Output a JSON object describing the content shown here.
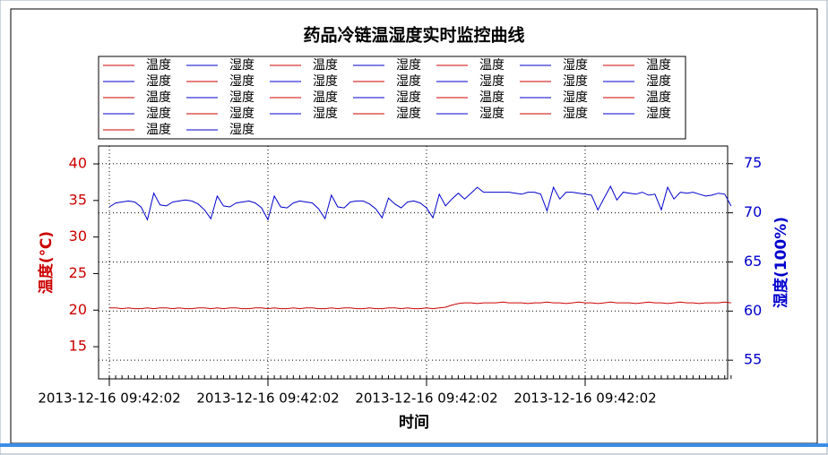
{
  "chart_data": {
    "type": "line",
    "title": "药品冷链温湿度实时监控曲线",
    "x_label": "时间",
    "y_label": "温度(℃)",
    "y2_label": "湿度(100%)",
    "legend": [
      {
        "name": "温度",
        "color": "#cc0000"
      },
      {
        "name": "湿度",
        "color": "#0000cc"
      },
      {
        "name": "温度",
        "color": "#cc0000"
      },
      {
        "name": "湿度",
        "color": "#0000cc"
      },
      {
        "name": "温度",
        "color": "#cc0000"
      },
      {
        "name": "湿度",
        "color": "#0000cc"
      },
      {
        "name": "温度",
        "color": "#cc0000"
      },
      {
        "name": "湿度",
        "color": "#0000cc"
      },
      {
        "name": "湿度",
        "color": "#cc0000"
      },
      {
        "name": "湿度",
        "color": "#0000cc"
      },
      {
        "name": "湿度",
        "color": "#cc0000"
      },
      {
        "name": "湿度",
        "color": "#0000cc"
      },
      {
        "name": "湿度",
        "color": "#cc0000"
      },
      {
        "name": "湿度",
        "color": "#0000cc"
      },
      {
        "name": "温度",
        "color": "#cc0000"
      },
      {
        "name": "湿度",
        "color": "#0000cc"
      },
      {
        "name": "温度",
        "color": "#cc0000"
      },
      {
        "name": "湿度",
        "color": "#0000cc"
      },
      {
        "name": "温度",
        "color": "#cc0000"
      },
      {
        "name": "湿度",
        "color": "#0000cc"
      },
      {
        "name": "温度",
        "color": "#cc0000"
      },
      {
        "name": "湿度",
        "color": "#0000cc"
      },
      {
        "name": "湿度",
        "color": "#cc0000"
      },
      {
        "name": "湿度",
        "color": "#0000cc"
      },
      {
        "name": "湿度",
        "color": "#cc0000"
      },
      {
        "name": "湿度",
        "color": "#0000cc"
      },
      {
        "name": "湿度",
        "color": "#cc0000"
      },
      {
        "name": "湿度",
        "color": "#0000cc"
      },
      {
        "name": "温度",
        "color": "#cc0000"
      },
      {
        "name": "湿度",
        "color": "#0000cc"
      }
    ],
    "categories": [
      "2013-12-16 09:42:02",
      null,
      null,
      null,
      null,
      null,
      null,
      null,
      null,
      null,
      null,
      null,
      null,
      null,
      null,
      null,
      null,
      null,
      null,
      null,
      null,
      null,
      null,
      null,
      null,
      "2013-12-16 09:42:02",
      null,
      null,
      null,
      null,
      null,
      null,
      null,
      null,
      null,
      null,
      null,
      null,
      null,
      null,
      null,
      null,
      null,
      null,
      null,
      null,
      null,
      null,
      null,
      null,
      "2013-12-16 09:42:02",
      null,
      null,
      null,
      null,
      null,
      null,
      null,
      null,
      null,
      null,
      null,
      null,
      null,
      null,
      null,
      null,
      null,
      null,
      null,
      null,
      null,
      null,
      null,
      null,
      "2013-12-16 09:42:02",
      null,
      null,
      null,
      null,
      null,
      null,
      null,
      null,
      null,
      null,
      null,
      null,
      null,
      null,
      null,
      null,
      null,
      null,
      null,
      null,
      null,
      null,
      null
    ],
    "series": [
      {
        "color": "#cc0000",
        "values": [
          20.3,
          20.3,
          20.2,
          20.3,
          20.2,
          20.2,
          20.3,
          20.2,
          20.3,
          20.3,
          20.2,
          20.3,
          20.2,
          20.2,
          20.3,
          20.3,
          20.2,
          20.3,
          20.2,
          20.3,
          20.3,
          20.2,
          20.2,
          20.3,
          20.3,
          20.2,
          20.3,
          20.2,
          20.2,
          20.3,
          20.2,
          20.3,
          20.3,
          20.2,
          20.2,
          20.3,
          20.2,
          20.3,
          20.3,
          20.2,
          20.2,
          20.3,
          20.2,
          20.2,
          20.3,
          20.3,
          20.2,
          20.3,
          20.2,
          20.2,
          20.3,
          20.2,
          20.3,
          20.4,
          20.7,
          20.9,
          21.0,
          21.0,
          20.9,
          21.0,
          21.0,
          21.0,
          21.1,
          21.0,
          21.0,
          21.0,
          20.9,
          21.0,
          21.0,
          21.1,
          21.0,
          21.0,
          20.9,
          21.0,
          21.1,
          21.0,
          21.0,
          20.9,
          21.0,
          21.1,
          21.0,
          21.0,
          21.0,
          20.9,
          21.0,
          21.1,
          21.0,
          21.0,
          20.9,
          21.0,
          21.1,
          21.0,
          21.0,
          20.9,
          21.0,
          21.0,
          21.0,
          21.1,
          21.0
        ]
      },
      {
        "color": "#0000cc",
        "axis": "y2",
        "values": [
          70.6,
          71.0,
          71.1,
          71.2,
          71.1,
          70.6,
          69.3,
          72.0,
          70.8,
          70.7,
          71.1,
          71.2,
          71.3,
          71.2,
          70.9,
          70.3,
          69.4,
          71.7,
          70.7,
          70.6,
          71.0,
          71.1,
          71.2,
          71.0,
          70.5,
          69.3,
          71.7,
          70.6,
          70.5,
          71.0,
          71.2,
          71.1,
          71.0,
          70.4,
          69.4,
          71.8,
          70.6,
          70.5,
          71.1,
          71.2,
          71.2,
          70.9,
          70.4,
          69.5,
          71.5,
          70.9,
          70.5,
          71.1,
          71.2,
          71.0,
          70.5,
          69.5,
          71.9,
          70.7,
          71.4,
          72.0,
          71.4,
          72.0,
          72.6,
          72.1,
          72.1,
          72.1,
          72.1,
          72.1,
          72.0,
          71.9,
          72.1,
          72.1,
          71.9,
          70.2,
          72.6,
          71.4,
          72.1,
          72.1,
          72.0,
          71.9,
          71.8,
          70.3,
          71.5,
          72.7,
          71.3,
          72.1,
          72.0,
          71.9,
          72.1,
          71.8,
          71.9,
          70.3,
          72.6,
          71.4,
          72.1,
          72.0,
          72.1,
          71.9,
          71.7,
          71.8,
          72.0,
          71.9,
          70.7
        ]
      }
    ],
    "ylim": [
      10.6,
      42.45
    ],
    "yticks": [
      15,
      20,
      25,
      30,
      35,
      40
    ],
    "y2lim": [
      53.1,
      76.8
    ],
    "y2ticks": [
      55,
      60,
      65,
      70,
      75
    ],
    "grid": true
  }
}
